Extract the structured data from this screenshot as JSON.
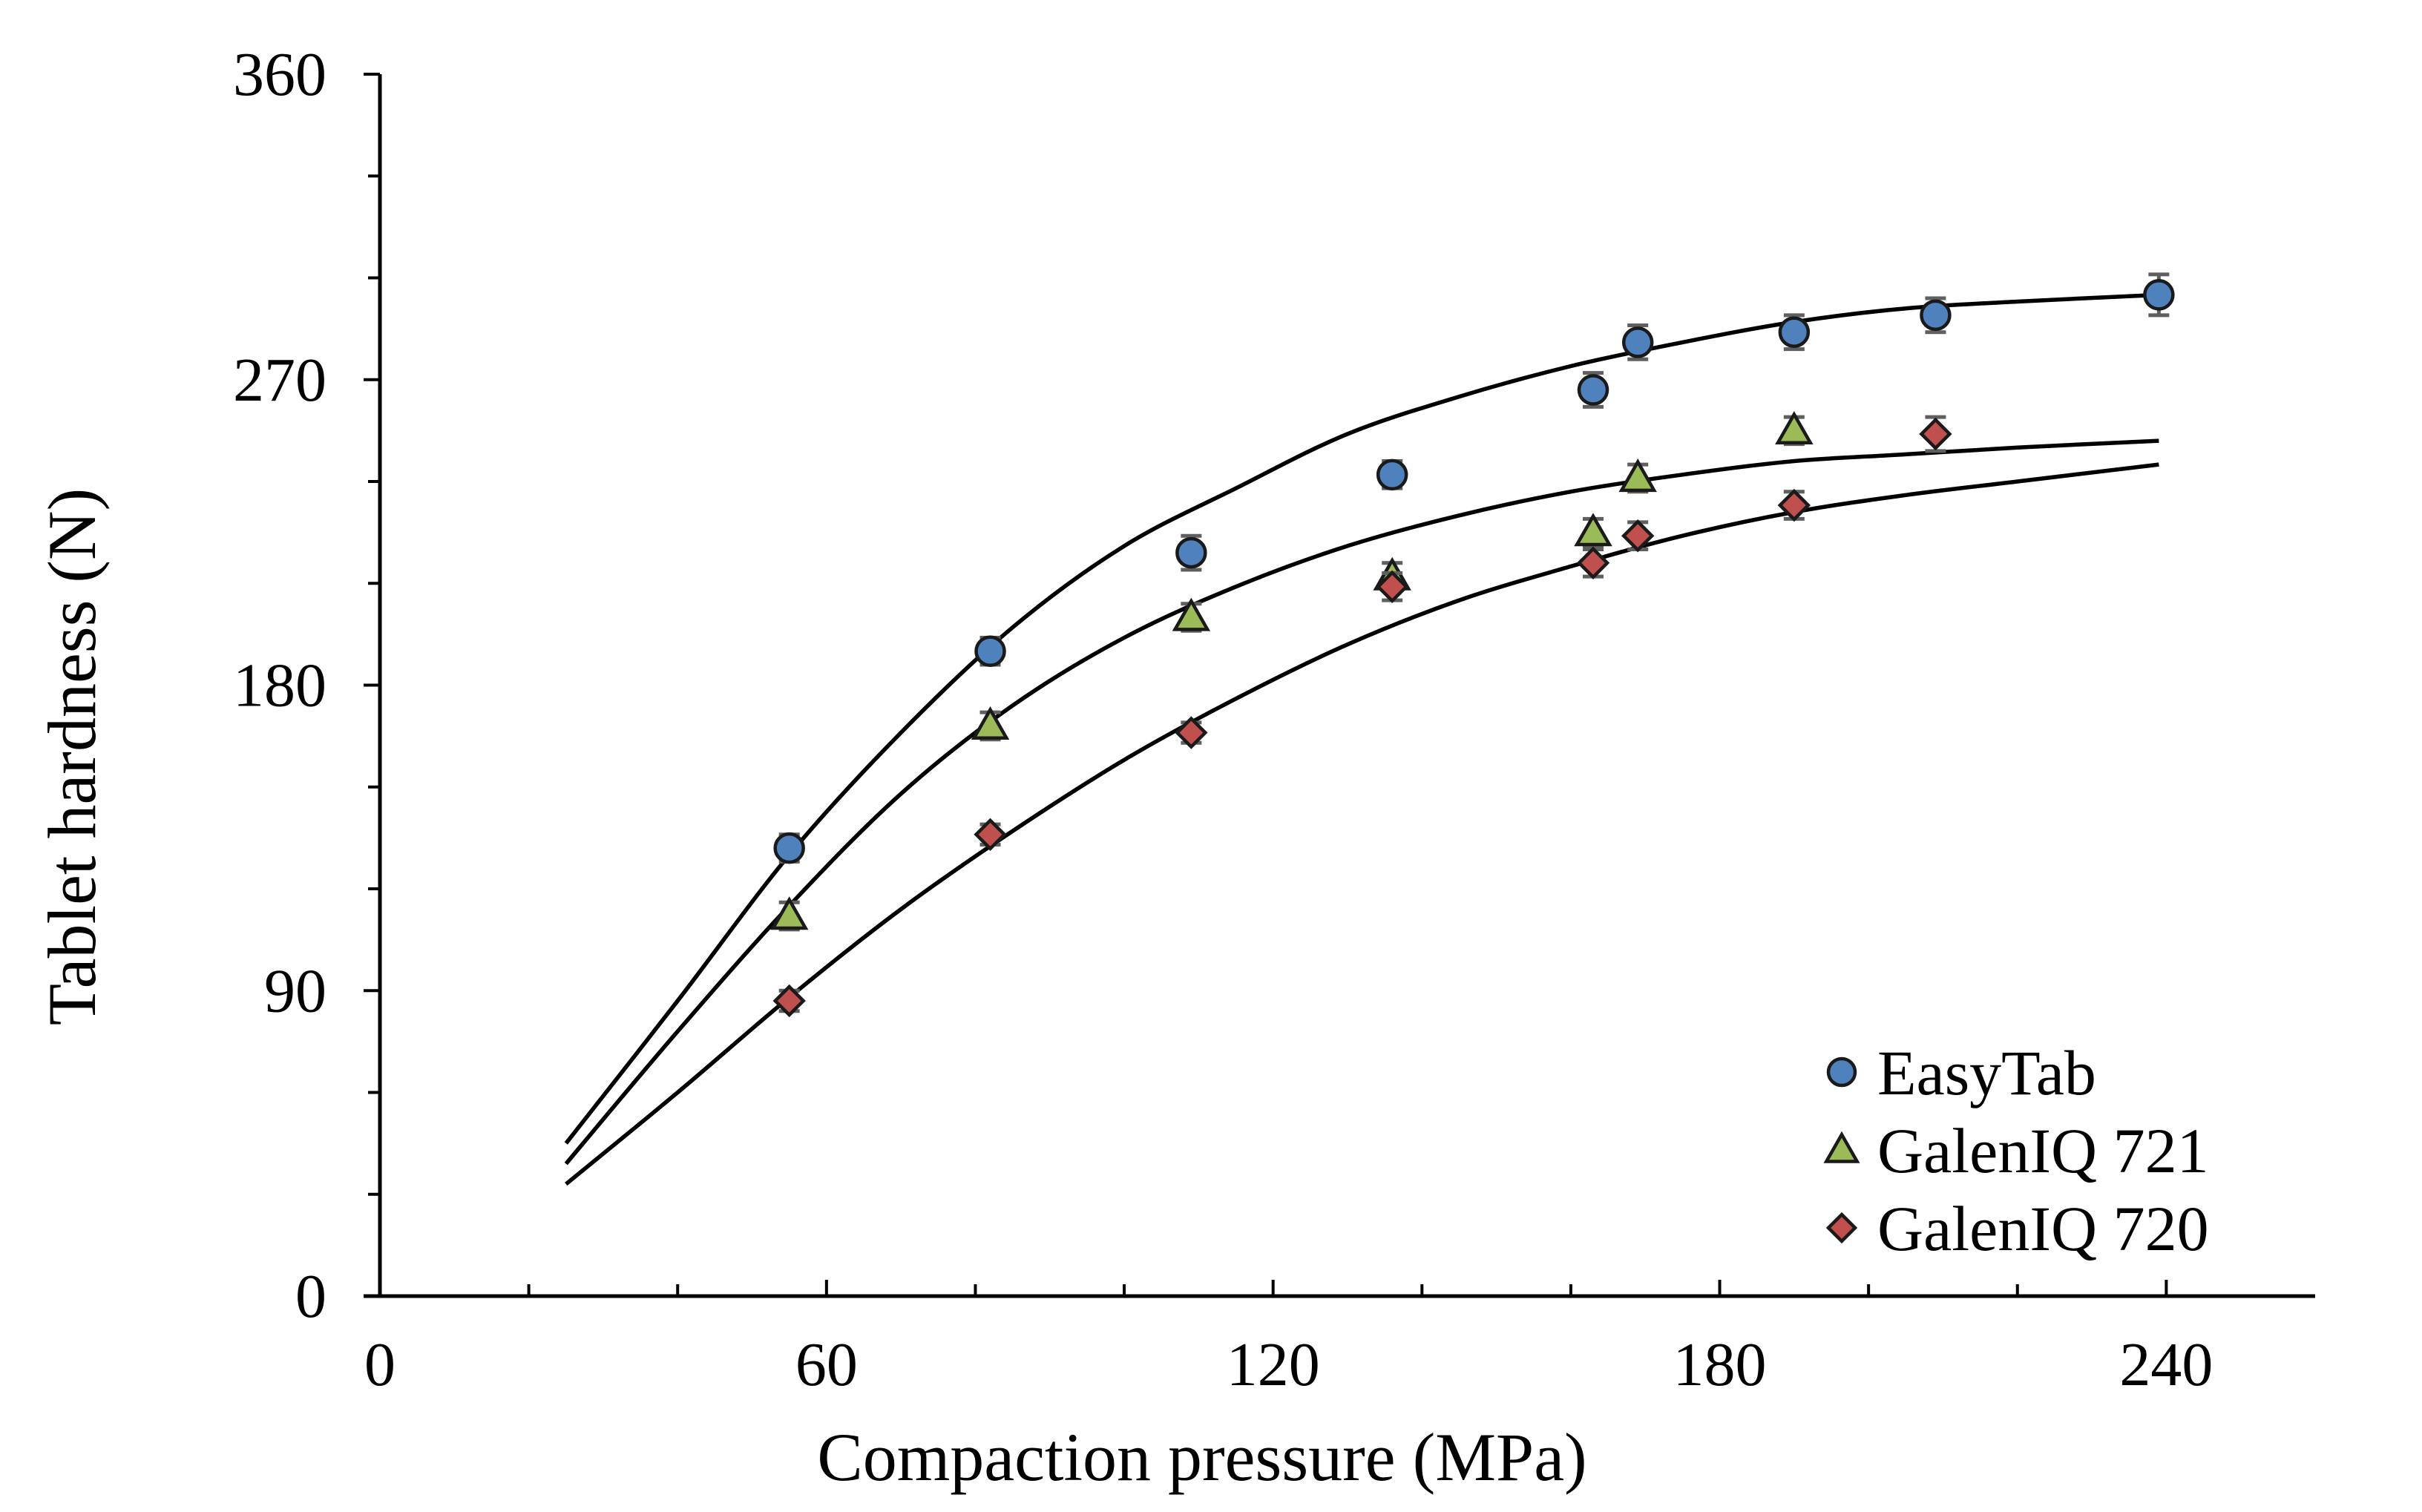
{
  "chart_data": {
    "type": "scatter",
    "title": "",
    "xlabel": "Compaction pressure (MPa)",
    "ylabel": "Tablet hardness (N)",
    "xlim": [
      0,
      260
    ],
    "ylim": [
      0,
      360
    ],
    "x_ticks": [
      0,
      60,
      120,
      180,
      240
    ],
    "y_ticks": [
      0,
      90,
      180,
      270,
      360
    ],
    "x_tick_labels": [
      "0",
      "60",
      "120",
      "180",
      "240"
    ],
    "y_tick_labels": [
      "0",
      "90",
      "180",
      "270",
      "360"
    ],
    "x_minor_step": 20,
    "y_minor_step": 30,
    "legend_position": "bottom-right",
    "series": [
      {
        "name": "EasyTab",
        "marker": "circle",
        "color": "#4F81BD",
        "x": [
          55,
          82,
          109,
          136,
          163,
          169,
          190,
          209,
          239
        ],
        "y": [
          132,
          190,
          219,
          242,
          267,
          281,
          284,
          289,
          295
        ],
        "err": [
          4,
          4,
          5,
          4,
          5,
          5,
          5,
          5,
          6
        ],
        "fit": {
          "x": [
            25,
            40,
            55,
            70,
            85,
            100,
            115,
            130,
            145,
            160,
            175,
            190,
            205,
            220,
            239
          ],
          "y": [
            45,
            87,
            130,
            166,
            197,
            221,
            238,
            254,
            265,
            274,
            281,
            287,
            291,
            293,
            295
          ]
        }
      },
      {
        "name": "GalenIQ 721",
        "marker": "triangle",
        "color": "#9BBB59",
        "x": [
          55,
          82,
          109,
          136,
          163,
          169,
          190
        ],
        "y": [
          112,
          168,
          200,
          212,
          225,
          241,
          255
        ],
        "err": [
          4,
          4,
          4,
          4,
          4,
          4,
          4
        ],
        "fit": {
          "x": [
            25,
            40,
            55,
            70,
            85,
            100,
            115,
            130,
            145,
            160,
            175,
            190,
            205,
            220,
            239
          ],
          "y": [
            39,
            78,
            115,
            148,
            174,
            194,
            209,
            221,
            230,
            237,
            242,
            246,
            248,
            250,
            252
          ]
        }
      },
      {
        "name": "GalenIQ 720",
        "marker": "diamond",
        "color": "#C0504D",
        "x": [
          55,
          82,
          109,
          136,
          163,
          169,
          190,
          209
        ],
        "y": [
          87,
          136,
          166,
          209,
          216,
          224,
          233,
          254
        ],
        "err": [
          3,
          3,
          3,
          4,
          4,
          4,
          4,
          5
        ],
        "fit": {
          "x": [
            25,
            40,
            55,
            70,
            85,
            100,
            115,
            130,
            145,
            160,
            175,
            190,
            205,
            220,
            239
          ],
          "y": [
            33,
            60,
            88,
            114,
            137,
            158,
            176,
            192,
            205,
            215,
            224,
            231,
            236,
            240,
            245
          ]
        }
      }
    ]
  }
}
